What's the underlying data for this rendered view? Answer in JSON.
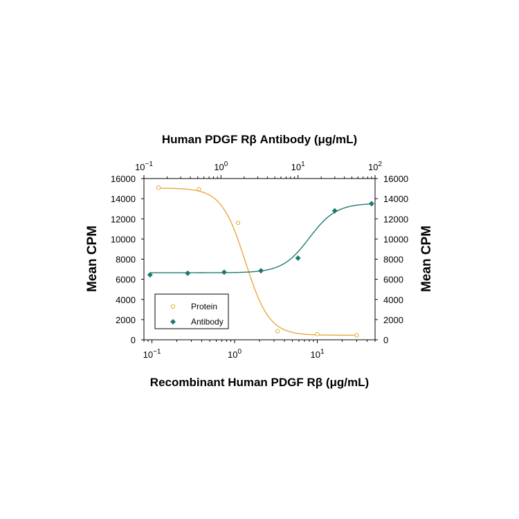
{
  "chart_data": {
    "type": "scatter",
    "top_axis": {
      "title": "Human PDGF Rβ Antibody (μg/mL)",
      "scale": "log",
      "range": [
        0.1,
        100
      ],
      "ticks": [
        {
          "value": 0.1,
          "base": "10",
          "exp": "−1"
        },
        {
          "value": 1,
          "base": "10",
          "exp": "0"
        },
        {
          "value": 10,
          "base": "10",
          "exp": "1"
        },
        {
          "value": 100,
          "base": "10",
          "exp": "2"
        }
      ]
    },
    "bottom_axis": {
      "title": "Recombinant Human PDGF Rβ (μg/mL)",
      "scale": "log",
      "range": [
        0.08,
        50
      ],
      "ticks": [
        {
          "value": 0.1,
          "base": "10",
          "exp": "−1"
        },
        {
          "value": 1,
          "base": "10",
          "exp": "0"
        },
        {
          "value": 10,
          "base": "10",
          "exp": "1"
        }
      ]
    },
    "left_axis": {
      "title": "Mean CPM",
      "range": [
        0,
        16000
      ],
      "ticks": [
        "0",
        "2000",
        "4000",
        "6000",
        "8000",
        "10000",
        "12000",
        "14000",
        "16000"
      ]
    },
    "right_axis": {
      "title": "Mean CPM",
      "range": [
        0,
        16000
      ],
      "ticks": [
        "0",
        "2000",
        "4000",
        "6000",
        "8000",
        "10000",
        "12000",
        "14000",
        "16000"
      ]
    },
    "legend": {
      "position": "bottom-left",
      "entries": [
        "Protein",
        "Antibody"
      ]
    },
    "series": [
      {
        "name": "Protein",
        "axis": "bottom",
        "color": "#E8A83A",
        "marker": "open-circle",
        "x": [
          0.12,
          0.37,
          1.1,
          3.3,
          10,
          30
        ],
        "y": [
          15100,
          14950,
          11600,
          850,
          550,
          450
        ],
        "fit": {
          "top": 15050,
          "bottom": 450,
          "ec50": 1.35,
          "hill": 3.0
        }
      },
      {
        "name": "Antibody",
        "axis": "top",
        "color": "#1B7A6E",
        "marker": "filled-diamond",
        "x": [
          0.12,
          0.37,
          1.1,
          3.3,
          10,
          30,
          90
        ],
        "y": [
          6450,
          6600,
          6700,
          6850,
          8100,
          12800,
          13500
        ],
        "fit": {
          "bottom": 6650,
          "top": 13550,
          "ec50": 14,
          "hill": 2.5
        }
      }
    ]
  }
}
